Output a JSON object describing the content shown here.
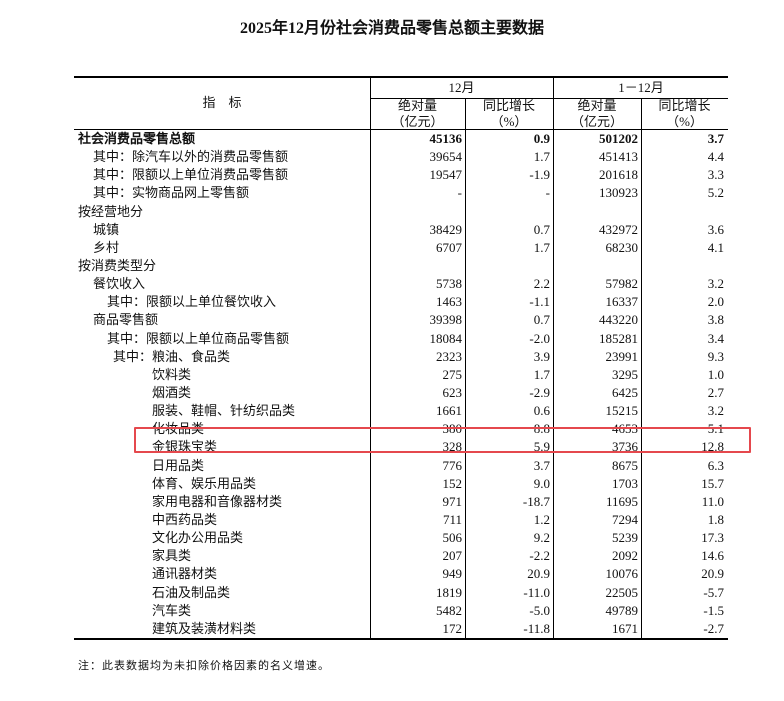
{
  "title": "2025年12月份社会消费品零售总额主要数据",
  "header": {
    "indicator": "指　标",
    "period1": "12月",
    "period2": "1－12月",
    "abs": "绝对量",
    "abs_unit": "（亿元）",
    "growth": "同比增长",
    "growth_unit": "（%）"
  },
  "rows": [
    {
      "label": "社会消费品零售总额",
      "level": 0,
      "bold": true,
      "v": [
        "45136",
        "0.9",
        "501202",
        "3.7"
      ]
    },
    {
      "label": "其中：除汽车以外的消费品零售额",
      "level": 1,
      "v": [
        "39654",
        "1.7",
        "451413",
        "4.4"
      ]
    },
    {
      "label": "其中：限额以上单位消费品零售额",
      "level": 1,
      "v": [
        "19547",
        "-1.9",
        "201618",
        "3.3"
      ]
    },
    {
      "label": "其中：实物商品网上零售额",
      "level": 1,
      "v": [
        "-",
        "-",
        "130923",
        "5.2"
      ]
    },
    {
      "label": "按经营地分",
      "level": 0,
      "v": [
        "",
        "",
        "",
        ""
      ]
    },
    {
      "label": "城镇",
      "level": 1,
      "v": [
        "38429",
        "0.7",
        "432972",
        "3.6"
      ]
    },
    {
      "label": "乡村",
      "level": 1,
      "v": [
        "6707",
        "1.7",
        "68230",
        "4.1"
      ]
    },
    {
      "label": "按消费类型分",
      "level": 0,
      "v": [
        "",
        "",
        "",
        ""
      ]
    },
    {
      "label": "餐饮收入",
      "level": 1,
      "v": [
        "5738",
        "2.2",
        "57982",
        "3.2"
      ]
    },
    {
      "label": "其中：限额以上单位餐饮收入",
      "level": 2,
      "v": [
        "1463",
        "-1.1",
        "16337",
        "2.0"
      ]
    },
    {
      "label": "商品零售额",
      "level": 1,
      "v": [
        "39398",
        "0.7",
        "443220",
        "3.8"
      ]
    },
    {
      "label": "其中：限额以上单位商品零售额",
      "level": 2,
      "v": [
        "18084",
        "-2.0",
        "185281",
        "3.4"
      ]
    },
    {
      "label": "其中：粮油、食品类",
      "level": 3,
      "v": [
        "2323",
        "3.9",
        "23991",
        "9.3"
      ]
    },
    {
      "label": "饮料类",
      "level": 4,
      "v": [
        "275",
        "1.7",
        "3295",
        "1.0"
      ]
    },
    {
      "label": "烟酒类",
      "level": 4,
      "v": [
        "623",
        "-2.9",
        "6425",
        "2.7"
      ]
    },
    {
      "label": "服装、鞋帽、针纺织品类",
      "level": 4,
      "v": [
        "1661",
        "0.6",
        "15215",
        "3.2"
      ]
    },
    {
      "label": "化妆品类",
      "level": 4,
      "highlight": true,
      "v": [
        "380",
        "8.8",
        "4653",
        "5.1"
      ]
    },
    {
      "label": "金银珠宝类",
      "level": 4,
      "v": [
        "328",
        "5.9",
        "3736",
        "12.8"
      ]
    },
    {
      "label": "日用品类",
      "level": 4,
      "v": [
        "776",
        "3.7",
        "8675",
        "6.3"
      ]
    },
    {
      "label": "体育、娱乐用品类",
      "level": 4,
      "v": [
        "152",
        "9.0",
        "1703",
        "15.7"
      ]
    },
    {
      "label": "家用电器和音像器材类",
      "level": 4,
      "v": [
        "971",
        "-18.7",
        "11695",
        "11.0"
      ]
    },
    {
      "label": "中西药品类",
      "level": 4,
      "v": [
        "711",
        "1.2",
        "7294",
        "1.8"
      ]
    },
    {
      "label": "文化办公用品类",
      "level": 4,
      "v": [
        "506",
        "9.2",
        "5239",
        "17.3"
      ]
    },
    {
      "label": "家具类",
      "level": 4,
      "v": [
        "207",
        "-2.2",
        "2092",
        "14.6"
      ]
    },
    {
      "label": "通讯器材类",
      "level": 4,
      "v": [
        "949",
        "20.9",
        "10076",
        "20.9"
      ]
    },
    {
      "label": "石油及制品类",
      "level": 4,
      "v": [
        "1819",
        "-11.0",
        "22505",
        "-5.7"
      ]
    },
    {
      "label": "汽车类",
      "level": 4,
      "v": [
        "5482",
        "-5.0",
        "49789",
        "-1.5"
      ]
    },
    {
      "label": "建筑及装潢材料类",
      "level": 4,
      "v": [
        "172",
        "-11.8",
        "1671",
        "-2.7"
      ]
    }
  ],
  "note": "注：此表数据均为未扣除价格因素的名义增速。",
  "highlight_color": "#e5484d"
}
